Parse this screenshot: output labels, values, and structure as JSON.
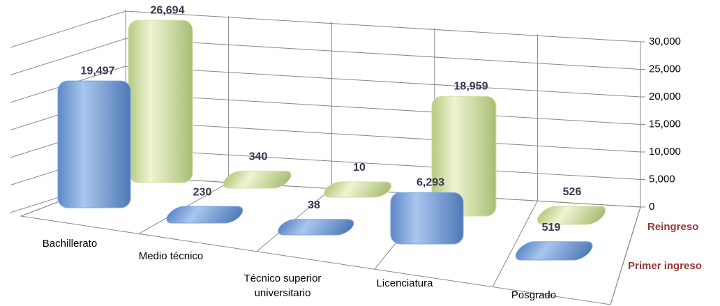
{
  "chart_data": {
    "type": "bar3d",
    "categories": [
      "Bachillerato",
      "Medio técnico",
      "Técnico superior\nuniversitario",
      "Licenciatura",
      "Posgrado"
    ],
    "series": [
      {
        "name": "Primer ingreso",
        "color": "#7aa6dc",
        "values": [
          19497,
          230,
          38,
          6293,
          519
        ],
        "value_labels": [
          "19,497",
          "230",
          "38",
          "6,293",
          "519"
        ]
      },
      {
        "name": "Reingreso",
        "color": "#d4e2a4",
        "values": [
          26694,
          340,
          10,
          18959,
          526
        ],
        "value_labels": [
          "26,694",
          "340",
          "10",
          "18,959",
          "526"
        ]
      }
    ],
    "ylim": [
      0,
      30000
    ],
    "yticks": [
      0,
      {
        "value": 5000,
        "label": "5,000"
      },
      {
        "value": 10000,
        "label": "10,000"
      },
      {
        "value": 15000,
        "label": "15,000"
      },
      {
        "value": 20000,
        "label": "20,000"
      },
      {
        "value": 25000,
        "label": "25,000"
      },
      {
        "value": 30000,
        "label": "30,000"
      }
    ],
    "grid": true
  }
}
